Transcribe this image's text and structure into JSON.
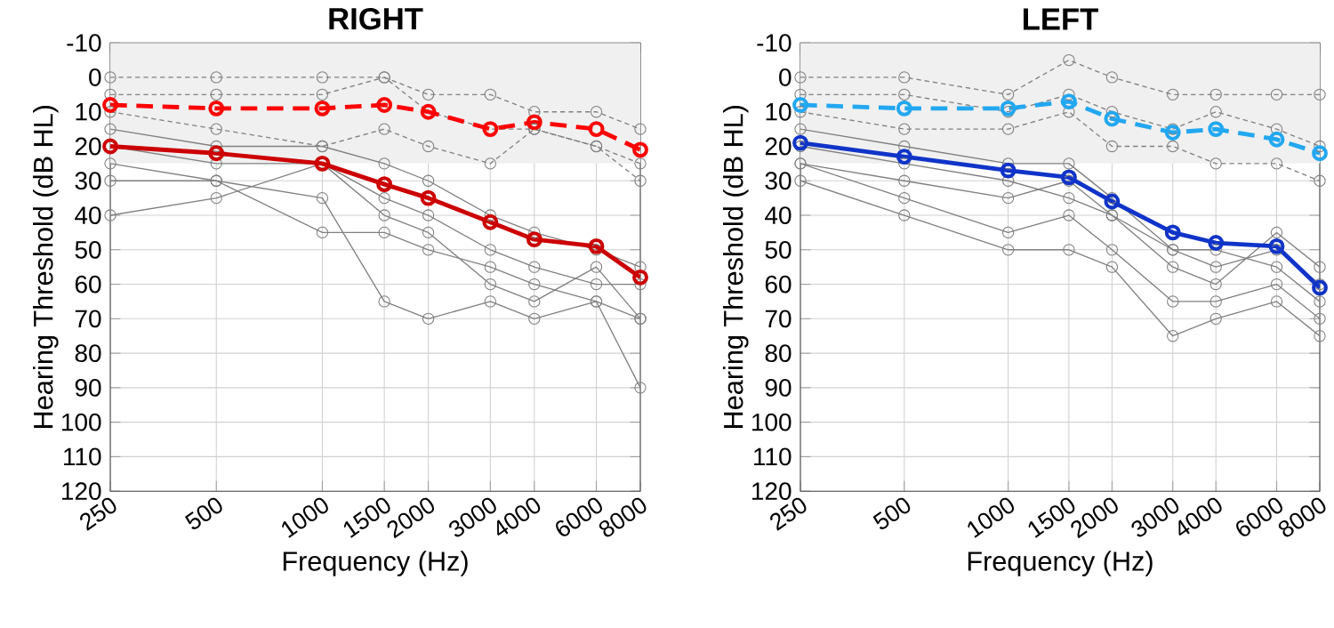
{
  "chart_data": [
    {
      "type": "line",
      "title": "RIGHT",
      "xlabel": "Frequency (Hz)",
      "ylabel": "Hearing Threshold (dB HL)",
      "log": "x",
      "grid": true,
      "marker": "circle",
      "x": [
        250,
        500,
        1000,
        1500,
        2000,
        3000,
        4000,
        6000,
        8000
      ],
      "xlim": [
        250,
        8000
      ],
      "xticks": [
        250,
        500,
        1000,
        1500,
        2000,
        3000,
        4000,
        6000,
        8000
      ],
      "ylim": [
        120,
        -10
      ],
      "yticks": [
        -10,
        0,
        10,
        20,
        30,
        40,
        50,
        60,
        70,
        80,
        90,
        100,
        110,
        120
      ],
      "bands": [
        {
          "axis": "y",
          "from": -10,
          "to": 25,
          "color": "#f0f0f0"
        }
      ],
      "series": [
        {
          "color": "#808080",
          "line_style": "solid",
          "values": [
            25,
            30,
            45,
            45,
            50,
            55,
            60,
            65,
            70
          ]
        },
        {
          "color": "#808080",
          "line_style": "solid",
          "values": [
            30,
            30,
            35,
            65,
            70,
            65,
            70,
            65,
            90
          ]
        },
        {
          "color": "#808080",
          "line_style": "solid",
          "values": [
            20,
            25,
            25,
            35,
            40,
            50,
            55,
            60,
            60
          ]
        },
        {
          "color": "#808080",
          "line_style": "solid",
          "values": [
            15,
            20,
            20,
            25,
            30,
            40,
            45,
            50,
            55
          ]
        },
        {
          "color": "#808080",
          "line_style": "solid",
          "values": [
            40,
            35,
            25,
            40,
            45,
            60,
            65,
            55,
            70
          ]
        },
        {
          "color": "#808080",
          "line_style": "dashed",
          "values": [
            0,
            0,
            0,
            0,
            5,
            5,
            10,
            10,
            15
          ]
        },
        {
          "color": "#808080",
          "line_style": "dashed",
          "values": [
            5,
            5,
            5,
            0,
            10,
            15,
            15,
            20,
            25
          ]
        },
        {
          "color": "#808080",
          "line_style": "dashed",
          "values": [
            10,
            15,
            20,
            15,
            20,
            25,
            15,
            20,
            30
          ]
        },
        {
          "color": "#ff0000",
          "line_style": "dashed",
          "values": [
            8,
            9,
            9,
            8,
            10,
            15,
            13,
            15,
            21
          ]
        },
        {
          "color": "#cc0000",
          "line_style": "solid",
          "values": [
            20,
            22,
            25,
            31,
            35,
            42,
            47,
            49,
            58
          ]
        }
      ]
    },
    {
      "type": "line",
      "title": "LEFT",
      "xlabel": "Frequency (Hz)",
      "ylabel": "Hearing Threshold (dB HL)",
      "log": "x",
      "grid": true,
      "marker": "circle",
      "x": [
        250,
        500,
        1000,
        1500,
        2000,
        3000,
        4000,
        6000,
        8000
      ],
      "xlim": [
        250,
        8000
      ],
      "xticks": [
        250,
        500,
        1000,
        1500,
        2000,
        3000,
        4000,
        6000,
        8000
      ],
      "ylim": [
        120,
        -10
      ],
      "yticks": [
        -10,
        0,
        10,
        20,
        30,
        40,
        50,
        60,
        70,
        80,
        90,
        100,
        110,
        120
      ],
      "bands": [
        {
          "axis": "y",
          "from": -10,
          "to": 25,
          "color": "#f0f0f0"
        }
      ],
      "series": [
        {
          "color": "#808080",
          "line_style": "solid",
          "values": [
            25,
            30,
            35,
            30,
            40,
            50,
            55,
            50,
            60
          ]
        },
        {
          "color": "#808080",
          "line_style": "solid",
          "values": [
            30,
            40,
            50,
            50,
            55,
            75,
            70,
            65,
            75
          ]
        },
        {
          "color": "#808080",
          "line_style": "solid",
          "values": [
            15,
            20,
            25,
            25,
            35,
            50,
            50,
            55,
            65
          ]
        },
        {
          "color": "#808080",
          "line_style": "solid",
          "values": [
            25,
            35,
            45,
            40,
            50,
            65,
            65,
            60,
            70
          ]
        },
        {
          "color": "#808080",
          "line_style": "solid",
          "values": [
            20,
            25,
            30,
            35,
            40,
            55,
            60,
            45,
            55
          ]
        },
        {
          "color": "#808080",
          "line_style": "dashed",
          "values": [
            0,
            0,
            5,
            -5,
            0,
            5,
            5,
            5,
            5
          ]
        },
        {
          "color": "#808080",
          "line_style": "dashed",
          "values": [
            5,
            5,
            10,
            5,
            10,
            15,
            10,
            15,
            20
          ]
        },
        {
          "color": "#808080",
          "line_style": "dashed",
          "values": [
            10,
            15,
            15,
            10,
            20,
            20,
            25,
            25,
            30
          ]
        },
        {
          "color": "#22a7f0",
          "line_style": "dashed",
          "values": [
            8,
            9,
            9,
            7,
            12,
            16,
            15,
            18,
            22
          ]
        },
        {
          "color": "#1034c8",
          "line_style": "solid",
          "values": [
            19,
            23,
            27,
            29,
            36,
            45,
            48,
            49,
            61
          ]
        }
      ]
    }
  ]
}
